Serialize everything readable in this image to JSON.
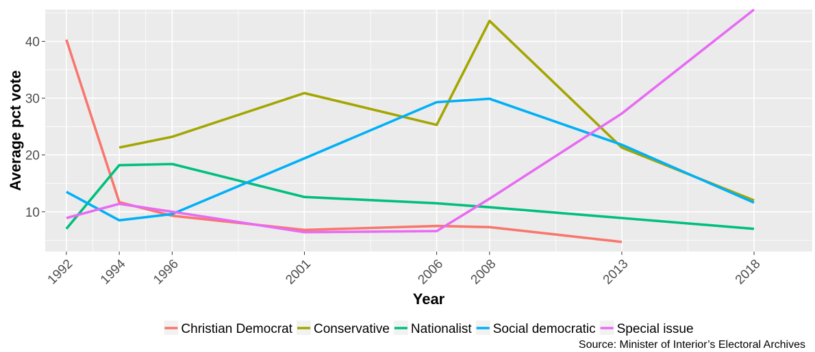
{
  "chart_data": {
    "type": "line",
    "xlabel": "Year",
    "ylabel": "Average pct vote",
    "caption": "Source: Minister of Interior’s Electoral Archives",
    "xlim": [
      1991.2,
      2020.2
    ],
    "ylim": [
      3,
      45.6
    ],
    "x_ticks": [
      1992,
      1994,
      1996,
      2001,
      2006,
      2008,
      2013,
      2018
    ],
    "y_ticks": [
      10,
      20,
      30,
      40
    ],
    "grid": true,
    "legend_position": "bottom",
    "series": [
      {
        "name": "Christian Democrat",
        "color": "#F8766D",
        "points": [
          [
            1992,
            40.3
          ],
          [
            1994,
            11.7
          ],
          [
            1996,
            9.3
          ],
          [
            2001,
            6.8
          ],
          [
            2006,
            7.5
          ],
          [
            2008,
            7.3
          ],
          [
            2013,
            4.7
          ]
        ]
      },
      {
        "name": "Conservative",
        "color": "#A3A500",
        "points": [
          [
            1994,
            21.3
          ],
          [
            1996,
            23.2
          ],
          [
            2001,
            30.9
          ],
          [
            2006,
            25.3
          ],
          [
            2008,
            43.6
          ],
          [
            2013,
            21.3
          ],
          [
            2018,
            12.0
          ]
        ]
      },
      {
        "name": "Nationalist",
        "color": "#00BF7D",
        "points": [
          [
            1992,
            7.0
          ],
          [
            1994,
            18.2
          ],
          [
            1996,
            18.4
          ],
          [
            2001,
            12.6
          ],
          [
            2006,
            11.5
          ],
          [
            2008,
            10.8
          ],
          [
            2013,
            8.9
          ],
          [
            2018,
            7.0
          ]
        ]
      },
      {
        "name": "Social democratic",
        "color": "#00B0F6",
        "points": [
          [
            1992,
            13.5
          ],
          [
            1994,
            8.5
          ],
          [
            1996,
            9.6
          ],
          [
            2001,
            19.4
          ],
          [
            2006,
            29.3
          ],
          [
            2008,
            29.9
          ],
          [
            2013,
            21.8
          ],
          [
            2018,
            11.6
          ]
        ]
      },
      {
        "name": "Special issue",
        "color": "#E76BF3",
        "points": [
          [
            1992,
            8.9
          ],
          [
            1994,
            11.4
          ],
          [
            1996,
            10.0
          ],
          [
            2001,
            6.4
          ],
          [
            2006,
            6.6
          ],
          [
            2008,
            12.3
          ],
          [
            2013,
            27.3
          ],
          [
            2018,
            45.6
          ]
        ]
      }
    ]
  }
}
